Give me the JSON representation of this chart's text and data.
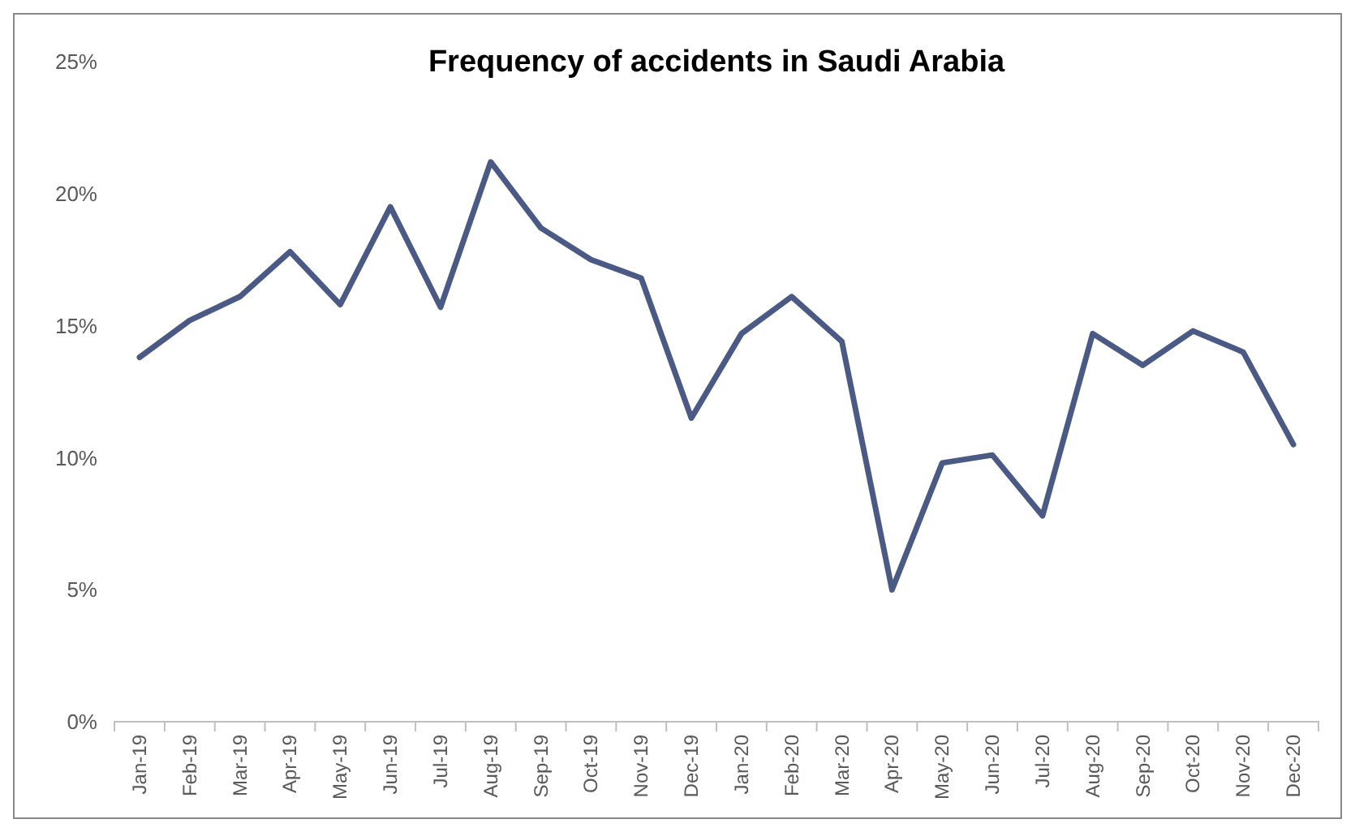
{
  "chart_data": {
    "type": "line",
    "title": "Frequency of accidents in Saudi Arabia",
    "categories": [
      "Jan-19",
      "Feb-19",
      "Mar-19",
      "Apr-19",
      "May-19",
      "Jun-19",
      "Jul-19",
      "Aug-19",
      "Sep-19",
      "Oct-19",
      "Nov-19",
      "Dec-19",
      "Jan-20",
      "Feb-20",
      "Mar-20",
      "Apr-20",
      "May-20",
      "Jun-20",
      "Jul-20",
      "Aug-20",
      "Sep-20",
      "Oct-20",
      "Nov-20",
      "Dec-20"
    ],
    "series": [
      {
        "color": "#4a5a85",
        "values": [
          13.8,
          15.2,
          16.1,
          17.8,
          15.8,
          19.5,
          15.7,
          21.2,
          18.7,
          17.5,
          16.8,
          11.5,
          14.7,
          16.1,
          14.4,
          5.0,
          9.8,
          10.1,
          7.8,
          14.7,
          13.5,
          14.8,
          14.0,
          10.5
        ]
      }
    ],
    "ylim": [
      0,
      25
    ],
    "yticks": [
      {
        "value": 0,
        "label": "0%"
      },
      {
        "value": 5,
        "label": "5%"
      },
      {
        "value": 10,
        "label": "10%"
      },
      {
        "value": 15,
        "label": "15%"
      },
      {
        "value": 20,
        "label": "20%"
      },
      {
        "value": 25,
        "label": "25%"
      }
    ],
    "grid": false,
    "marker": "none",
    "line_style": "solid"
  }
}
